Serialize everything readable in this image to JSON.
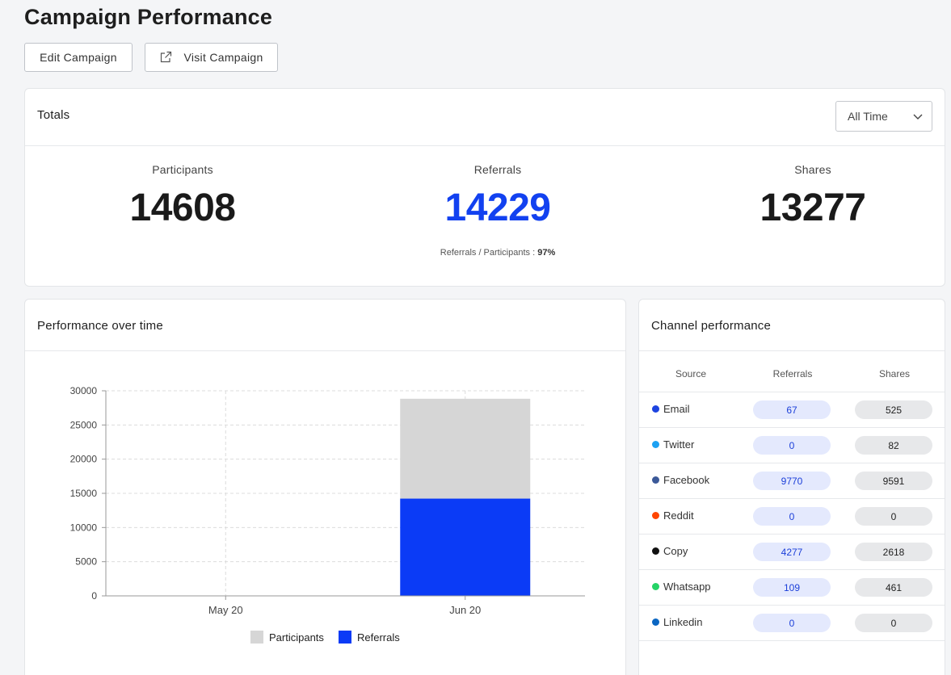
{
  "page": {
    "title": "Campaign Performance"
  },
  "actions": {
    "edit_label": "Edit Campaign",
    "visit_label": "Visit Campaign",
    "visit_icon": "external-link-icon"
  },
  "totals": {
    "title": "Totals",
    "period": "All Time",
    "participants_label": "Participants",
    "participants_value": "14608",
    "referrals_label": "Referrals",
    "referrals_value": "14229",
    "shares_label": "Shares",
    "shares_value": "13277",
    "ratio_label": "Referrals / Participants : ",
    "ratio_value": "97%"
  },
  "performance": {
    "title": "Performance over time"
  },
  "chart_data": {
    "type": "bar",
    "stacked": true,
    "categories": [
      "May 20",
      "Jun 20"
    ],
    "series": [
      {
        "name": "Participants",
        "values": [
          0,
          14608
        ],
        "color": "#d6d6d6"
      },
      {
        "name": "Referrals",
        "values": [
          0,
          14229
        ],
        "color": "#0b3bf6"
      }
    ],
    "ylim": [
      0,
      30000
    ],
    "yticks": [
      0,
      5000,
      10000,
      15000,
      20000,
      25000,
      30000
    ],
    "grid": true,
    "legend": "bottom"
  },
  "channels": {
    "title": "Channel performance",
    "headers": {
      "source": "Source",
      "referrals": "Referrals",
      "shares": "Shares"
    },
    "rows": [
      {
        "source": "Email",
        "color": "#1d44e0",
        "referrals": "67",
        "shares": "525"
      },
      {
        "source": "Twitter",
        "color": "#1da1f2",
        "referrals": "0",
        "shares": "82"
      },
      {
        "source": "Facebook",
        "color": "#3b5998",
        "referrals": "9770",
        "shares": "9591"
      },
      {
        "source": "Reddit",
        "color": "#ff4500",
        "referrals": "0",
        "shares": "0"
      },
      {
        "source": "Copy",
        "color": "#111111",
        "referrals": "4277",
        "shares": "2618"
      },
      {
        "source": "Whatsapp",
        "color": "#25d366",
        "referrals": "109",
        "shares": "461"
      },
      {
        "source": "Linkedin",
        "color": "#0a66c2",
        "referrals": "0",
        "shares": "0"
      }
    ]
  }
}
